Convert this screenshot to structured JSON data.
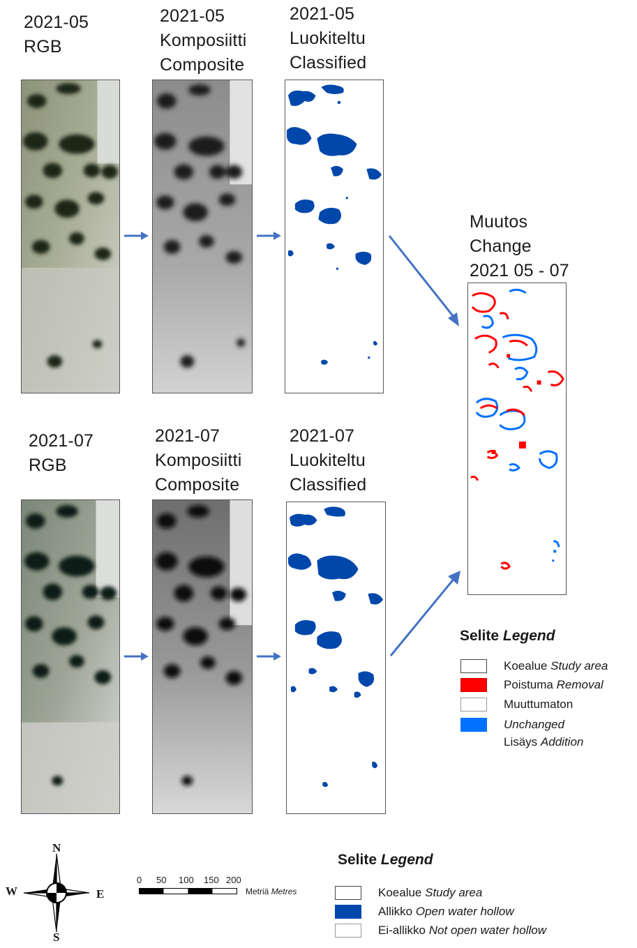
{
  "panels": {
    "may_rgb": {
      "line1": "2021-05",
      "line2": "RGB"
    },
    "may_composite": {
      "line1": "2021-05",
      "line2": "Komposiitti",
      "line3": "Composite"
    },
    "may_classified": {
      "line1": "2021-05",
      "line2": "Luokiteltu",
      "line3": "Classified"
    },
    "jul_rgb": {
      "line1": "2021-07",
      "line2": "RGB"
    },
    "jul_composite": {
      "line1": "2021-07",
      "line2": "Komposiitti",
      "line3": "Composite"
    },
    "jul_classified": {
      "line1": "2021-07",
      "line2": "Luokiteltu",
      "line3": "Classified"
    },
    "change": {
      "line1": "Muutos",
      "line2": "Change",
      "line3": "2021 05 - 07"
    }
  },
  "change_legend": {
    "title_fi": "Selite",
    "title_en": "Legend",
    "items": [
      {
        "fi": "Koealue",
        "en": "Study area",
        "color": "#ffffff"
      },
      {
        "fi": "Poistuma",
        "en": "Removal",
        "color": "#ff0000"
      },
      {
        "fi": "Muuttumaton",
        "en": "",
        "color": "#ffffff"
      },
      {
        "fi": "",
        "en": "Unchanged",
        "color": "#0070ff"
      },
      {
        "fi": "Lisäys",
        "en": "Addition",
        "color": ""
      }
    ]
  },
  "class_legend": {
    "title_fi": "Selite",
    "title_en": "Legend",
    "items": [
      {
        "fi": "Koealue",
        "en": "Study area",
        "color": "#ffffff"
      },
      {
        "fi": "Allikko",
        "en": "Open water hollow",
        "color": "#0047ab"
      },
      {
        "fi": "Ei-allikko",
        "en": "Not open water hollow",
        "color": "#ffffff"
      }
    ]
  },
  "scale_bar": {
    "ticks": [
      "0",
      "50",
      "100",
      "150",
      "200"
    ],
    "unit_fi": "Metriä",
    "unit_en": "Metres"
  },
  "compass": {
    "n": "N",
    "s": "S",
    "e": "E",
    "w": "W"
  },
  "colors": {
    "water": "#0047ab",
    "removal": "#ff0000",
    "addition": "#0070ff",
    "arrow": "#4472c4"
  }
}
